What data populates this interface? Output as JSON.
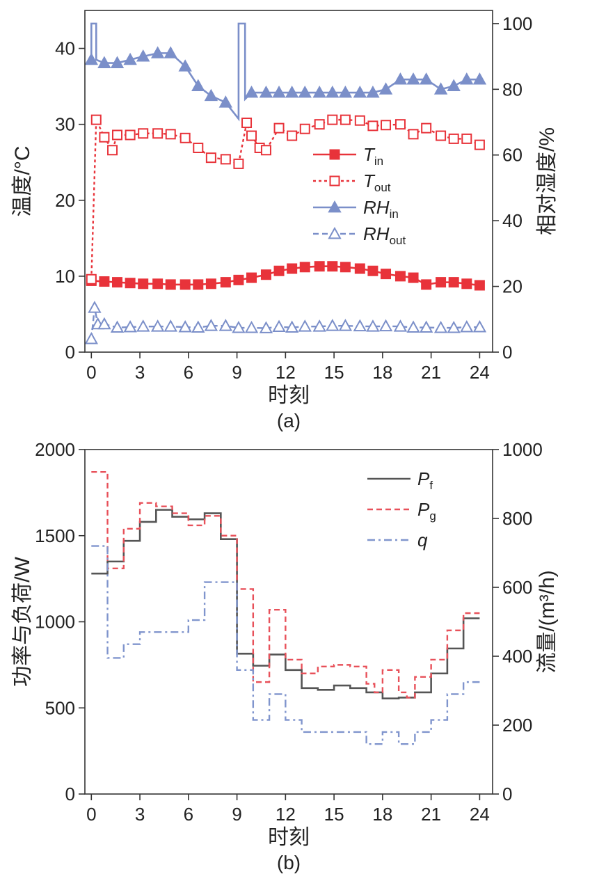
{
  "chart_data": [
    {
      "type": "line",
      "caption": "(a)",
      "xlabel": "时刻",
      "ylabel": "温度/°C",
      "y2label": "相对湿度/%",
      "xlim": [
        -0.4,
        24.8
      ],
      "xticks": [
        0,
        3,
        6,
        9,
        12,
        15,
        18,
        21,
        24
      ],
      "ylim": [
        0,
        45
      ],
      "yticks": [
        0,
        10,
        20,
        30,
        40
      ],
      "y2lim": [
        0,
        104
      ],
      "y2ticks": [
        0,
        20,
        40,
        60,
        80,
        100
      ],
      "legend_position": "center-right",
      "series": [
        {
          "name": "T",
          "sub": "in",
          "axis": "left",
          "color": "#e8333a",
          "dash": "solid",
          "marker": "square-filled",
          "x": [
            0,
            0.8,
            1.6,
            2.4,
            3.2,
            4.1,
            4.9,
            5.8,
            6.6,
            7.4,
            8.3,
            9.1,
            9.9,
            10.8,
            11.6,
            12.4,
            13.2,
            14.1,
            14.9,
            15.7,
            16.6,
            17.4,
            18.2,
            19.1,
            19.9,
            20.7,
            21.6,
            22.4,
            23.2,
            24
          ],
          "y": [
            9.4,
            9.3,
            9.2,
            9.1,
            9.0,
            9.0,
            8.9,
            8.9,
            8.9,
            9.0,
            9.2,
            9.5,
            9.8,
            10.2,
            10.7,
            11.0,
            11.2,
            11.3,
            11.3,
            11.2,
            11.0,
            10.7,
            10.3,
            10.0,
            9.8,
            8.9,
            9.2,
            9.2,
            9.0,
            8.8
          ]
        },
        {
          "name": "T",
          "sub": "out",
          "axis": "left",
          "color": "#e8333a",
          "dash": "dotted",
          "marker": "square-open",
          "x": [
            0,
            0.3,
            0.8,
            1.3,
            1.6,
            2.4,
            3.2,
            4.1,
            4.9,
            5.8,
            6.6,
            7.4,
            8.3,
            9.1,
            9.6,
            9.9,
            10.4,
            10.8,
            11.6,
            12.4,
            13.2,
            14.1,
            14.9,
            15.7,
            16.6,
            17.4,
            18.2,
            19.1,
            19.9,
            20.7,
            21.6,
            22.4,
            23.2,
            24
          ],
          "y": [
            9.6,
            30.6,
            28.3,
            26.6,
            28.6,
            28.6,
            28.8,
            28.8,
            28.7,
            28.2,
            26.9,
            25.6,
            25.4,
            24.8,
            30.2,
            28.5,
            26.9,
            26.6,
            29.5,
            28.5,
            29.4,
            30.0,
            30.6,
            30.6,
            30.5,
            29.8,
            29.9,
            30.0,
            28.7,
            29.5,
            28.5,
            28.1,
            28.1,
            27.3
          ]
        },
        {
          "name": "RH",
          "sub": "in",
          "axis": "right",
          "color": "#7b8fc9",
          "dash": "solid",
          "marker": "triangle-filled",
          "x": [
            0,
            0,
            0.3,
            0.3,
            0.8,
            1.6,
            2.4,
            3.2,
            4.1,
            4.9,
            5.8,
            6.6,
            7.4,
            8.3,
            9.1,
            9.1,
            9.5,
            9.5,
            9.9,
            10.8,
            11.6,
            12.4,
            13.2,
            14.1,
            14.9,
            15.7,
            16.6,
            17.4,
            18.2,
            19.1,
            19.9,
            20.7,
            21.6,
            22.4,
            23.2,
            24
          ],
          "y": [
            89,
            100,
            100,
            89,
            88,
            88,
            89,
            90,
            91,
            91,
            87,
            81,
            78,
            76,
            71,
            100,
            100,
            77,
            79,
            79,
            79,
            79,
            79,
            79,
            79,
            79,
            79,
            79,
            80,
            83,
            83,
            83,
            80,
            81,
            83,
            83
          ]
        },
        {
          "name": "RH",
          "sub": "out",
          "axis": "right",
          "color": "#7b8fc9",
          "dash": "dashed",
          "marker": "triangle-open",
          "x": [
            0,
            0.2,
            0.4,
            0.8,
            1.6,
            2.4,
            3.2,
            4.1,
            4.9,
            5.8,
            6.6,
            7.4,
            8.3,
            9.1,
            9.9,
            10.8,
            11.6,
            12.4,
            13.2,
            14.1,
            14.9,
            15.7,
            16.6,
            17.4,
            18.2,
            19.1,
            19.9,
            20.7,
            21.6,
            22.4,
            23.2,
            24
          ],
          "y": [
            4,
            13.5,
            8.5,
            8.5,
            7.5,
            7.6,
            7.8,
            7.8,
            7.8,
            7.6,
            7.5,
            8.0,
            8.0,
            7.4,
            7.4,
            7.3,
            7.7,
            7.5,
            7.8,
            7.8,
            8.0,
            8.0,
            7.9,
            7.8,
            7.9,
            7.8,
            7.5,
            7.5,
            7.4,
            7.4,
            7.6,
            7.6
          ]
        }
      ]
    },
    {
      "type": "line",
      "caption": "(b)",
      "xlabel": "时刻",
      "ylabel": "功率与负荷/W",
      "y2label": "流量/(m³/h)",
      "xlim": [
        -0.4,
        24.8
      ],
      "xticks": [
        0,
        3,
        6,
        9,
        12,
        15,
        18,
        21,
        24
      ],
      "ylim": [
        0,
        2000
      ],
      "yticks": [
        0,
        500,
        1000,
        1500,
        2000
      ],
      "y2lim": [
        0,
        1000
      ],
      "y2ticks": [
        0,
        200,
        400,
        600,
        800,
        1000
      ],
      "legend_position": "top-right",
      "series": [
        {
          "name": "P",
          "sub": "f",
          "axis": "left",
          "color": "#555555",
          "dash": "solid",
          "step": true,
          "x": [
            0,
            1,
            2,
            3,
            4,
            5,
            6,
            7,
            8,
            9,
            10,
            11,
            12,
            13,
            14,
            15,
            16,
            17,
            18,
            19,
            20,
            21,
            22,
            23,
            24
          ],
          "y": [
            1280,
            1350,
            1470,
            1580,
            1650,
            1610,
            1595,
            1630,
            1480,
            815,
            745,
            810,
            720,
            615,
            605,
            630,
            615,
            590,
            555,
            560,
            590,
            700,
            845,
            1020,
            1020
          ]
        },
        {
          "name": "P",
          "sub": "g",
          "axis": "left",
          "color": "#e8515a",
          "dash": "dashed",
          "step": true,
          "x": [
            0,
            1,
            2,
            3,
            4,
            5,
            6,
            7,
            8,
            9,
            9.3,
            10,
            10.5,
            11,
            11.5,
            12,
            13,
            14,
            15,
            16,
            17,
            17.5,
            18,
            18.5,
            19,
            19.5,
            20,
            21,
            22,
            23,
            24
          ],
          "y": [
            1870,
            1310,
            1540,
            1690,
            1670,
            1630,
            1560,
            1615,
            1500,
            1190,
            1190,
            650,
            650,
            1070,
            1070,
            780,
            700,
            740,
            750,
            740,
            640,
            590,
            720,
            720,
            590,
            560,
            680,
            780,
            950,
            1050,
            1050
          ]
        },
        {
          "name": "q",
          "axis": "right",
          "color": "#8095cd",
          "dash": "dashdot",
          "step": true,
          "x": [
            0,
            1,
            2,
            3,
            4,
            5,
            6,
            7,
            8,
            9,
            9.3,
            10,
            10.5,
            11,
            11.5,
            12,
            13,
            14,
            15,
            16,
            17,
            17.5,
            18,
            18.5,
            19,
            19.5,
            20,
            21,
            22,
            23,
            24
          ],
          "y": [
            720,
            395,
            435,
            470,
            470,
            470,
            505,
            615,
            615,
            360,
            360,
            215,
            215,
            290,
            290,
            215,
            180,
            180,
            180,
            180,
            145,
            145,
            180,
            180,
            145,
            145,
            180,
            215,
            290,
            325,
            325
          ]
        }
      ]
    }
  ]
}
